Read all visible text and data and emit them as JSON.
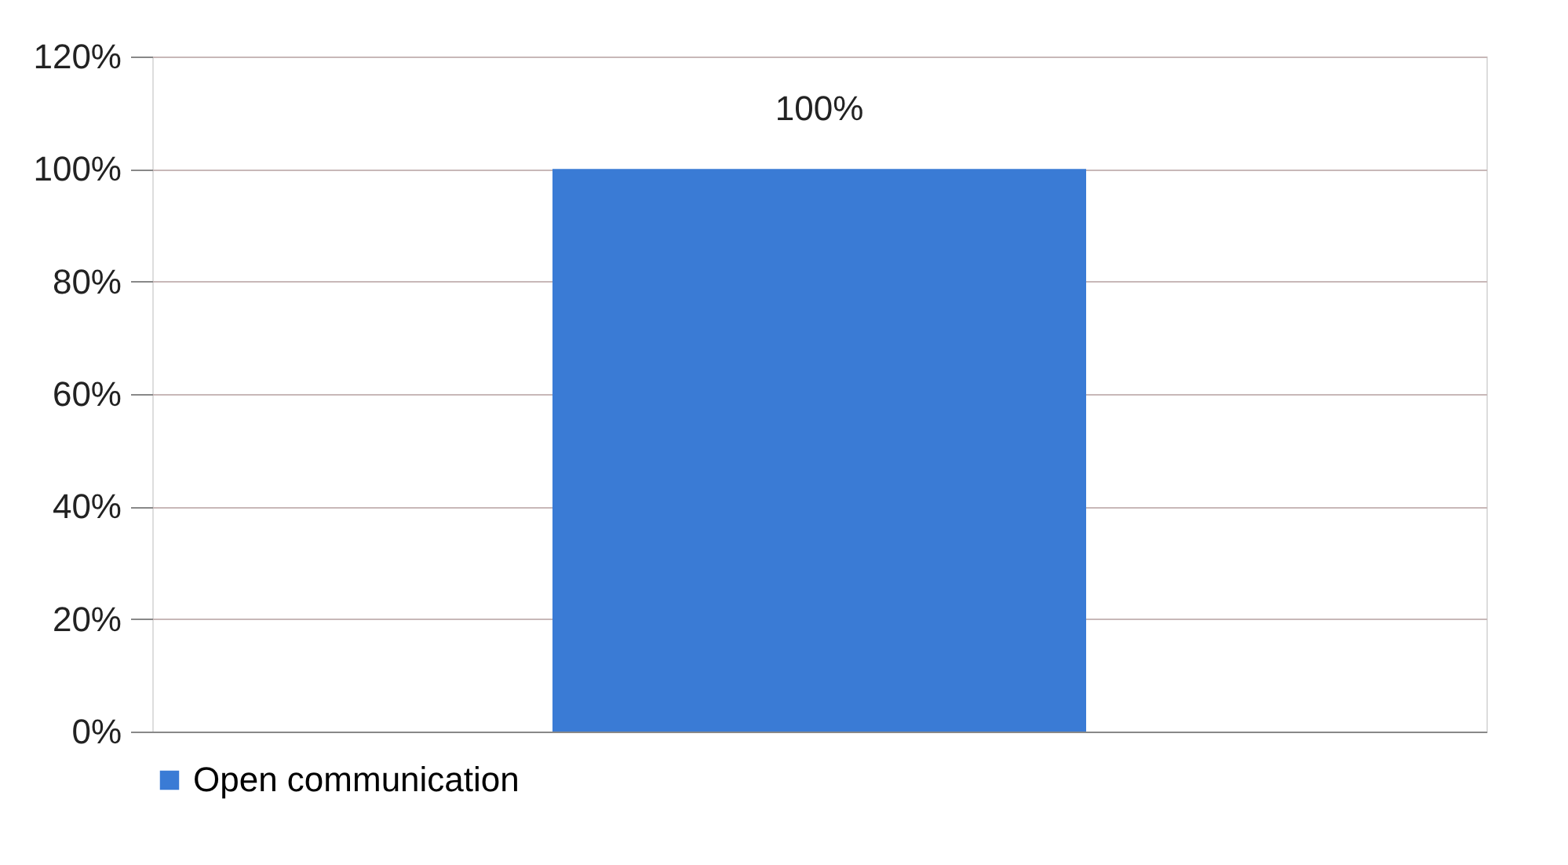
{
  "chart_data": {
    "type": "bar",
    "categories": [
      null
    ],
    "series": [
      {
        "name": "Open communication",
        "color": "#3a7bd5",
        "values": [
          100
        ],
        "value_labels": [
          "100%"
        ]
      }
    ],
    "ylim": [
      0,
      120
    ],
    "yticks": [
      {
        "value": 0,
        "label": "0%"
      },
      {
        "value": 20,
        "label": "20%"
      },
      {
        "value": 40,
        "label": "40%"
      },
      {
        "value": 60,
        "label": "60%"
      },
      {
        "value": 80,
        "label": "80%"
      },
      {
        "value": 100,
        "label": "100%"
      },
      {
        "value": 120,
        "label": "120%"
      }
    ],
    "grid": "y",
    "legend": "bottom"
  }
}
